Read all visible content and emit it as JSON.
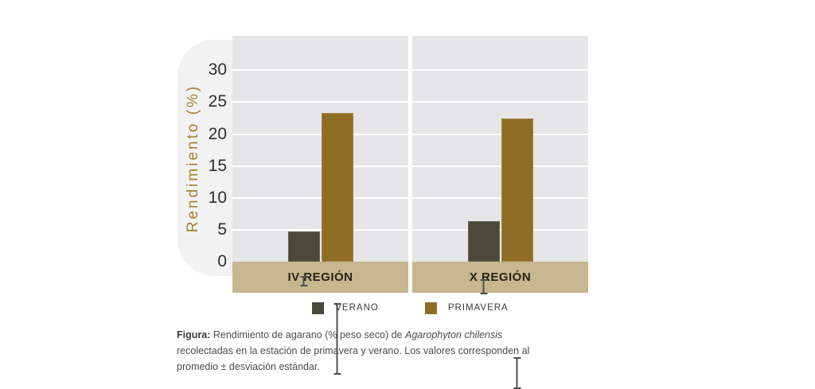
{
  "figure": {
    "caption": {
      "label": "Figura:",
      "before_species": "Rendimiento de agarano (% peso seco) de",
      "species": "Agarophyton chilensis",
      "after_species": "recolectadas en la estación de primavera y verano. Los valores corresponden al promedio ± desviación estándar."
    }
  },
  "chart_data": {
    "type": "bar",
    "categories": [
      "IV REGIÓN",
      "X REGIÓN"
    ],
    "series": [
      {
        "name": "VERANO",
        "color": "#4a4a3a",
        "values": [
          4.7,
          6.3
        ],
        "errors": [
          0.8,
          1.2
        ]
      },
      {
        "name": "PRIMAVERA",
        "color": "#8f6d24",
        "values": [
          23.3,
          22.4
        ],
        "errors": [
          5.6,
          2.5
        ]
      }
    ],
    "title": "",
    "xlabel": "",
    "ylabel": "Rendimiento (%)",
    "yticks": [
      0,
      5,
      10,
      15,
      20,
      25,
      30
    ],
    "ylim": [
      0,
      35.4
    ],
    "grid": true,
    "legend_position": "bottom",
    "error_bars": "± desviación estándar"
  },
  "colors": {
    "background": "#ffffff",
    "plot_background": "#e6e5e7",
    "gridline": "#ffffff",
    "axis_backdrop": "#f2f2f3",
    "category_band": "#c7b68e",
    "y_axis_title": "#a5812e",
    "tick_text": "#2f2f2f",
    "error_bar": "#4f4f4f",
    "verano_bar": "#4a4a3a",
    "primavera_bar": "#8f6d24"
  }
}
